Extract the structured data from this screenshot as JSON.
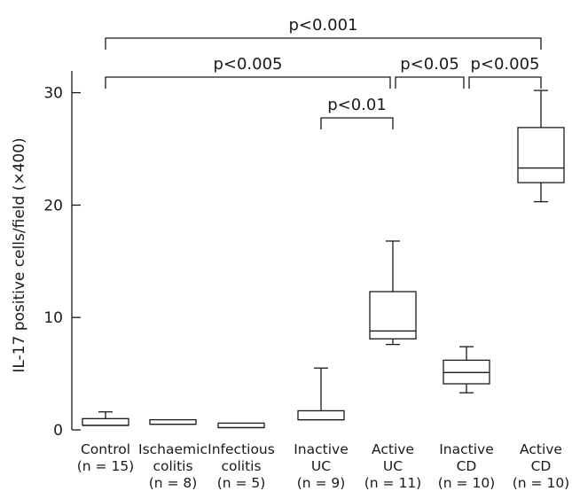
{
  "chart_data": {
    "type": "box",
    "ylabel": "IL-17 positive cells/field (×400)",
    "ylim": [
      0,
      32
    ],
    "yticks": [
      0,
      10,
      20,
      30
    ],
    "categories": [
      {
        "line1": "Control",
        "line2": "(n = 15)",
        "line3": ""
      },
      {
        "line1": "Ischaemic",
        "line2": "colitis",
        "line3": "(n = 8)"
      },
      {
        "line1": "Infectious",
        "line2": "colitis",
        "line3": "(n = 5)"
      },
      {
        "line1": "Inactive",
        "line2": "UC",
        "line3": "(n = 9)"
      },
      {
        "line1": "Active",
        "line2": "UC",
        "line3": "(n = 11)"
      },
      {
        "line1": "Inactive",
        "line2": "CD",
        "line3": "(n = 10)"
      },
      {
        "line1": "Active",
        "line2": "CD",
        "line3": "(n = 10)"
      }
    ],
    "boxes": [
      {
        "whisker_low": 0.4,
        "q1": 0.4,
        "median": 0.4,
        "q3": 1.0,
        "whisker_high": 1.6
      },
      {
        "whisker_low": 0.5,
        "q1": 0.5,
        "median": 0.5,
        "q3": 0.9,
        "whisker_high": 0.9
      },
      {
        "whisker_low": 0.2,
        "q1": 0.2,
        "median": 0.2,
        "q3": 0.6,
        "whisker_high": 0.6
      },
      {
        "whisker_low": 0.9,
        "q1": 0.9,
        "median": 0.9,
        "q3": 1.7,
        "whisker_high": 5.5
      },
      {
        "whisker_low": 7.6,
        "q1": 8.1,
        "median": 8.8,
        "q3": 12.3,
        "whisker_high": 16.8
      },
      {
        "whisker_low": 3.3,
        "q1": 4.1,
        "median": 5.1,
        "q3": 6.2,
        "whisker_high": 7.4
      },
      {
        "whisker_low": 20.3,
        "q1": 22.0,
        "median": 23.3,
        "q3": 26.9,
        "whisker_high": 30.2
      }
    ],
    "comparisons": [
      {
        "from": 0,
        "to": 6,
        "label": "p<0.001",
        "tier": 0
      },
      {
        "from": 0,
        "to": 4,
        "label": "p<0.005",
        "tier": 1
      },
      {
        "from": 4,
        "to": 5,
        "label": "p<0.05",
        "tier": 1
      },
      {
        "from": 5,
        "to": 6,
        "label": "p<0.005",
        "tier": 1
      },
      {
        "from": 3,
        "to": 4,
        "label": "p<0.01",
        "tier": 2
      }
    ]
  }
}
